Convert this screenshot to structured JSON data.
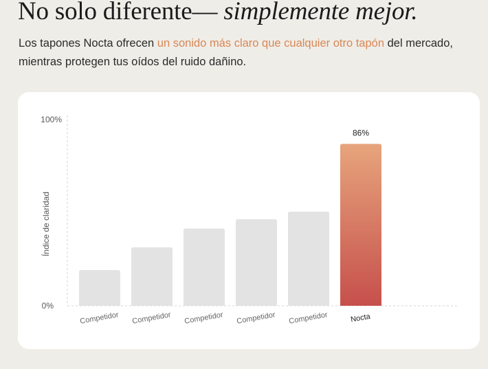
{
  "header": {
    "title_plain": "No solo diferente—",
    "title_italic": "simplemente mejor."
  },
  "intro": {
    "text_before": "Los tapones Nocta ofrecen ",
    "text_highlight": "un sonido más claro que cualquier otro tapón",
    "text_after": " del mercado, mientras protegen tus oídos del ruido dañino."
  },
  "colors": {
    "background": "#efede8",
    "card": "#ffffff",
    "accent_text": "#d98755",
    "bar_competitor": "#e3e3e3",
    "bar_highlight_top": "#e7a47c",
    "bar_highlight_bottom": "#c6504c"
  },
  "chart_data": {
    "type": "bar",
    "categories": [
      "Competidor",
      "Competidor",
      "Competidor",
      "Competidor",
      "Competidor",
      "Nocta"
    ],
    "values": [
      19,
      31,
      41,
      46,
      50,
      86
    ],
    "highlight_index": 5,
    "value_labels": [
      "",
      "",
      "",
      "",
      "",
      "86%"
    ],
    "ylabel": "Índice de claridad",
    "ylim": [
      0,
      100
    ],
    "yticks": [
      "0%",
      "100%"
    ],
    "grid": false
  }
}
